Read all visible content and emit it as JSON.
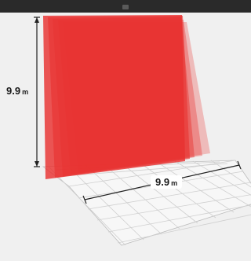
{
  "dimensions": {
    "height": {
      "value": "9.9",
      "unit": "m"
    },
    "width": {
      "value": "9.9",
      "unit": "m"
    }
  },
  "colors": {
    "panel_fill": "#e8312f",
    "grid_stroke": "#cfcfcf",
    "background": "#f0f0f0",
    "top_bar": "#2a2a2a"
  }
}
